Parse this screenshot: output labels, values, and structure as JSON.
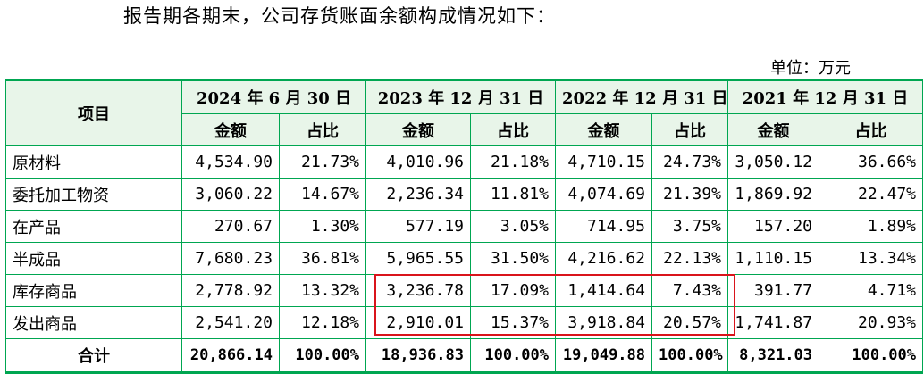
{
  "intro": "报告期各期末，公司存货账面余额构成情况如下：",
  "unit": "单位：万元",
  "table": {
    "item_header": "项目",
    "periods": [
      "2024 年 6 月 30 日",
      "2023 年 12 月 31 日",
      "2022 年 12 月 31 日",
      "2021 年 12 月 31 日"
    ],
    "sub_headers": {
      "amount": "金额",
      "ratio": "占比"
    },
    "rows": [
      {
        "name": "原材料",
        "cells": [
          "4,534.90",
          "21.73%",
          "4,010.96",
          "21.18%",
          "4,710.15",
          "24.73%",
          "3,050.12",
          "36.66%"
        ]
      },
      {
        "name": "委托加工物资",
        "cells": [
          "3,060.22",
          "14.67%",
          "2,236.34",
          "11.81%",
          "4,074.69",
          "21.39%",
          "1,869.92",
          "22.47%"
        ]
      },
      {
        "name": "在产品",
        "cells": [
          "270.67",
          "1.30%",
          "577.19",
          "3.05%",
          "714.95",
          "3.75%",
          "157.20",
          "1.89%"
        ]
      },
      {
        "name": "半成品",
        "cells": [
          "7,680.23",
          "36.81%",
          "5,965.55",
          "31.50%",
          "4,216.62",
          "22.13%",
          "1,110.15",
          "13.34%"
        ]
      },
      {
        "name": "库存商品",
        "cells": [
          "2,778.92",
          "13.32%",
          "3,236.78",
          "17.09%",
          "1,414.64",
          "7.43%",
          "391.77",
          "4.71%"
        ]
      },
      {
        "name": "发出商品",
        "cells": [
          "2,541.20",
          "12.18%",
          "2,910.01",
          "15.37%",
          "3,918.84",
          "20.57%",
          "1,741.87",
          "20.93%"
        ]
      }
    ],
    "total": {
      "name": "合计",
      "cells": [
        "20,866.14",
        "100.00%",
        "18,936.83",
        "100.00%",
        "19,049.88",
        "100.00%",
        "8,321.03",
        "100.00%"
      ]
    }
  },
  "colors": {
    "border": "#00a651",
    "highlight": "#d9141b"
  }
}
